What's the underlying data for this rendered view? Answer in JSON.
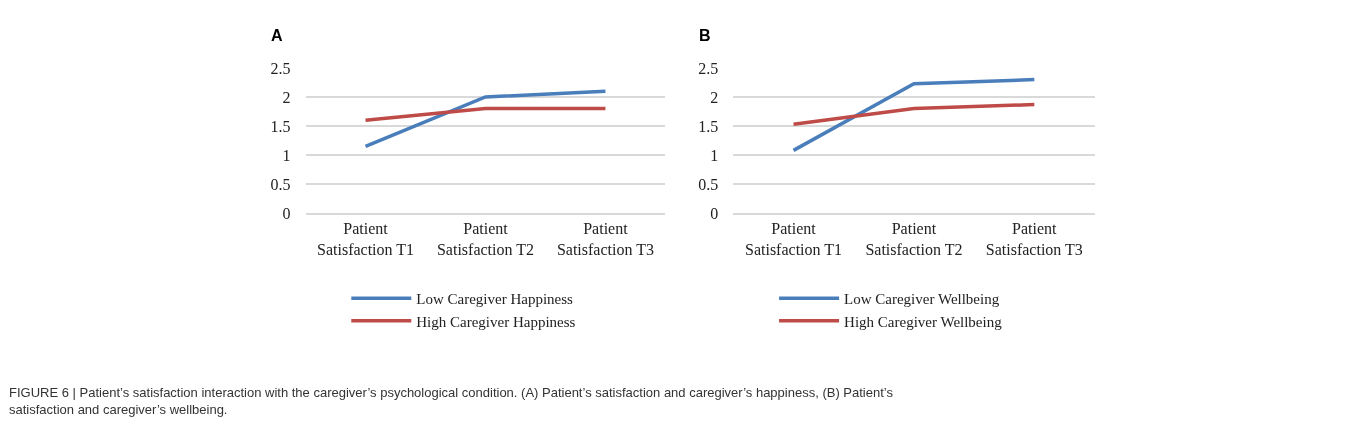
{
  "chart_data": [
    {
      "type": "line",
      "title": "A",
      "categories": [
        "Patient Satisfaction T1",
        "Patient Satisfaction T2",
        "Patient Satisfaction T3"
      ],
      "series": [
        {
          "name": "Low Caregiver Happiness",
          "color": "#4a7ebb",
          "values": [
            1.15,
            2.0,
            2.1
          ]
        },
        {
          "name": "High Caregiver Happiness",
          "color": "#be4b48",
          "values": [
            1.6,
            1.8,
            1.8
          ]
        }
      ],
      "ylim": [
        0,
        2.5
      ],
      "yticks": [
        0,
        0.5,
        1,
        1.5,
        2,
        2.5
      ],
      "grid": "y",
      "legend": "bottom",
      "marker": "none",
      "line_style": "solid",
      "annotations": [
        "FIGURE 6 | Patient’s satisfaction interaction with the caregiver’s psychological condition. (A) Patient’s satisfaction and caregiver’s happiness, (B) Patient’s satisfaction and caregiver’s wellbeing."
      ]
    },
    {
      "type": "line",
      "title": "B",
      "categories": [
        "Patient Satisfaction T1",
        "Patient Satisfaction T2",
        "Patient Satisfaction T3"
      ],
      "series": [
        {
          "name": "Low Caregiver Wellbeing",
          "color": "#4a7ebb",
          "values": [
            1.08,
            2.23,
            2.3
          ]
        },
        {
          "name": "High Caregiver Wellbeing",
          "color": "#be4b48",
          "values": [
            1.53,
            1.8,
            1.87
          ]
        }
      ],
      "ylim": [
        0,
        2.5
      ],
      "yticks": [
        0,
        0.5,
        1,
        1.5,
        2,
        2.5
      ],
      "grid": "y",
      "legend": "bottom",
      "marker": "none",
      "line_style": "solid"
    }
  ]
}
